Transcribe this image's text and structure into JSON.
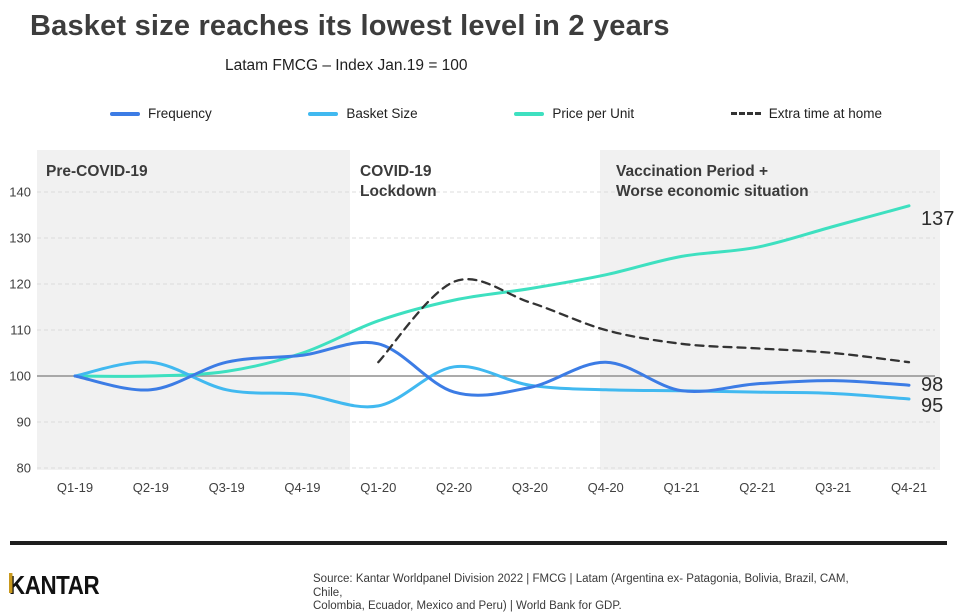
{
  "header": {
    "title": "Basket size reaches its lowest level in 2 years",
    "subtitle": "Latam FMCG – Index Jan.19 = 100"
  },
  "legend": {
    "items": [
      {
        "label": "Frequency",
        "color": "#3c7ce5",
        "dashed": false
      },
      {
        "label": "Basket Size",
        "color": "#41b9f0",
        "dashed": false
      },
      {
        "label": "Price per Unit",
        "color": "#3ee0c0",
        "dashed": false
      },
      {
        "label": "Extra time at home",
        "color": "#333333",
        "dashed": true
      }
    ]
  },
  "chart_data": {
    "type": "line",
    "title": "Basket size reaches its lowest level in 2 years",
    "subtitle": "Latam FMCG – Index Jan.19 = 100",
    "categories": [
      "Q1-19",
      "Q2-19",
      "Q3-19",
      "Q4-19",
      "Q1-20",
      "Q2-20",
      "Q3-20",
      "Q4-20",
      "Q1-21",
      "Q2-21",
      "Q3-21",
      "Q4-21"
    ],
    "series": [
      {
        "name": "Price per Unit",
        "color": "#3ee0c0",
        "style": "solid",
        "values": [
          100,
          100,
          101,
          105,
          112,
          116.5,
          119,
          122,
          126,
          128,
          132.5,
          137
        ]
      },
      {
        "name": "Basket Size",
        "color": "#41b9f0",
        "style": "solid",
        "values": [
          100,
          103,
          97,
          96,
          93.5,
          102,
          98,
          97,
          96.8,
          96.5,
          96.2,
          95
        ]
      },
      {
        "name": "Frequency",
        "color": "#3c7ce5",
        "style": "solid",
        "values": [
          100,
          97,
          103,
          104.5,
          107,
          96.5,
          97.5,
          103,
          96.8,
          98.3,
          99,
          98
        ]
      },
      {
        "name": "Extra time at home",
        "color": "#333333",
        "style": "dashed",
        "values": [
          null,
          null,
          null,
          null,
          103,
          120.5,
          116,
          110,
          107,
          106,
          105,
          103
        ]
      }
    ],
    "end_labels": [
      {
        "series": "Price per Unit",
        "text": "137"
      },
      {
        "series": "Frequency",
        "text": "98"
      },
      {
        "series": "Basket Size",
        "text": "95"
      }
    ],
    "ylim": [
      80,
      140
    ],
    "yticks": [
      140,
      130,
      120,
      110,
      100,
      90,
      80
    ],
    "baseline_value": 100,
    "grid": "horizontal-dashed",
    "legend_position": "top",
    "regions": [
      {
        "label_lines": [
          "Pre-COVID-19"
        ],
        "shaded": true
      },
      {
        "label_lines": [
          "COVID-19",
          "Lockdown"
        ],
        "shaded": false
      },
      {
        "label_lines": [
          "Vaccination Period +",
          "Worse economic situation"
        ],
        "shaded": true
      }
    ]
  },
  "footer": {
    "logo_k": "K",
    "logo_rest": "ANTAR",
    "source_line1": "Source: Kantar Worldpanel Division 2022 | FMCG | Latam (Argentina ex- Patagonia, Bolivia, Brazil, CAM, Chile,",
    "source_line2": "Colombia, Ecuador, Mexico and Peru) | World Bank for GDP."
  }
}
